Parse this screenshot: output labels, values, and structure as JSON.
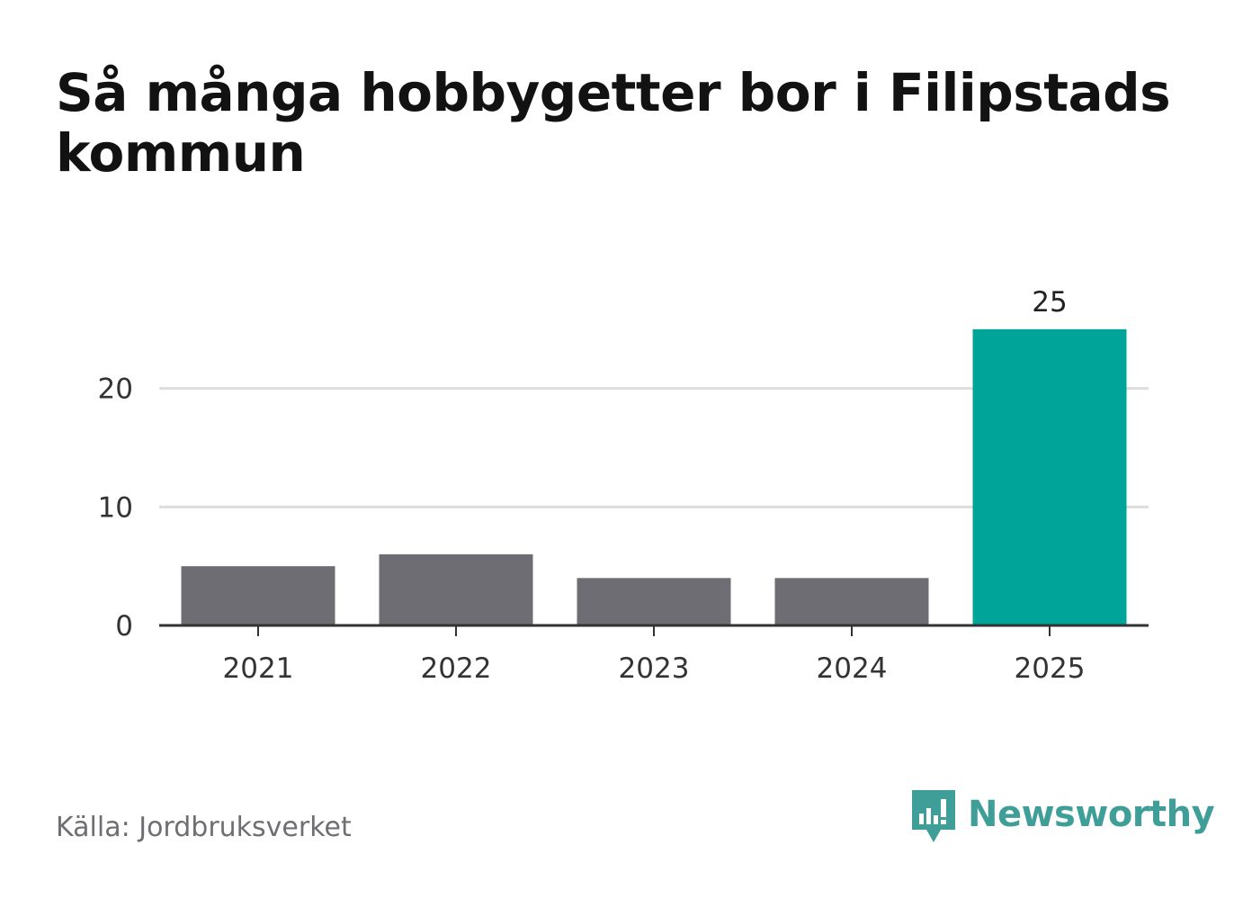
{
  "title": "Så många hobbygetter bor i Filipstads kommun",
  "source": "Källa: Jordbruksverket",
  "brand": {
    "name": "Newsworthy",
    "icon": "newsworthy-logo-icon",
    "color": "#3f9f98"
  },
  "colors": {
    "bar": "#6e6d73",
    "highlight": "#00a499",
    "grid": "#dddddd",
    "axis": "#333333"
  },
  "chart_data": {
    "type": "bar",
    "title": "Så många hobbygetter bor i Filipstads kommun",
    "xlabel": "",
    "ylabel": "",
    "categories": [
      "2021",
      "2022",
      "2023",
      "2024",
      "2025"
    ],
    "values": [
      5,
      6,
      4,
      4,
      25
    ],
    "highlight_index": 4,
    "data_labels": [
      "",
      "",
      "",
      "",
      "25"
    ],
    "ylim": [
      0,
      25
    ],
    "yticks": [
      0,
      10,
      20
    ],
    "grid": true,
    "legend": "none"
  }
}
